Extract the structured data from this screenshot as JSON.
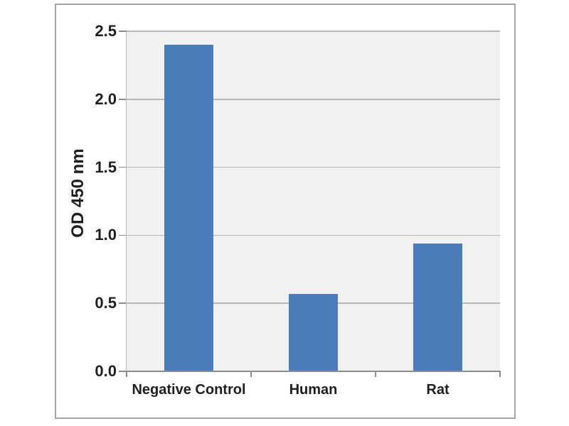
{
  "chart_data": {
    "type": "bar",
    "title": "",
    "categories": [
      "Negative Control",
      "Human",
      "Rat"
    ],
    "values": [
      2.4,
      0.57,
      0.94
    ],
    "xlabel": "",
    "ylabel": "OD 450 nm",
    "ylim": [
      0,
      2.5
    ],
    "yticks": [
      0.0,
      0.5,
      1.0,
      1.5,
      2.0,
      2.5
    ],
    "ytick_labels": [
      "0.0",
      "0.5",
      "1.0",
      "1.5",
      "2.0",
      "2.5"
    ],
    "grid": "horizontal-major",
    "legend": "none",
    "colors": {
      "bar": "#4d7cba",
      "plot_bg": "#f1f1f1",
      "grid": "#b8b8b8",
      "axis": "#8c8c8c",
      "frame_border": "#a6a6a6",
      "text": "#1f1f1f"
    }
  }
}
